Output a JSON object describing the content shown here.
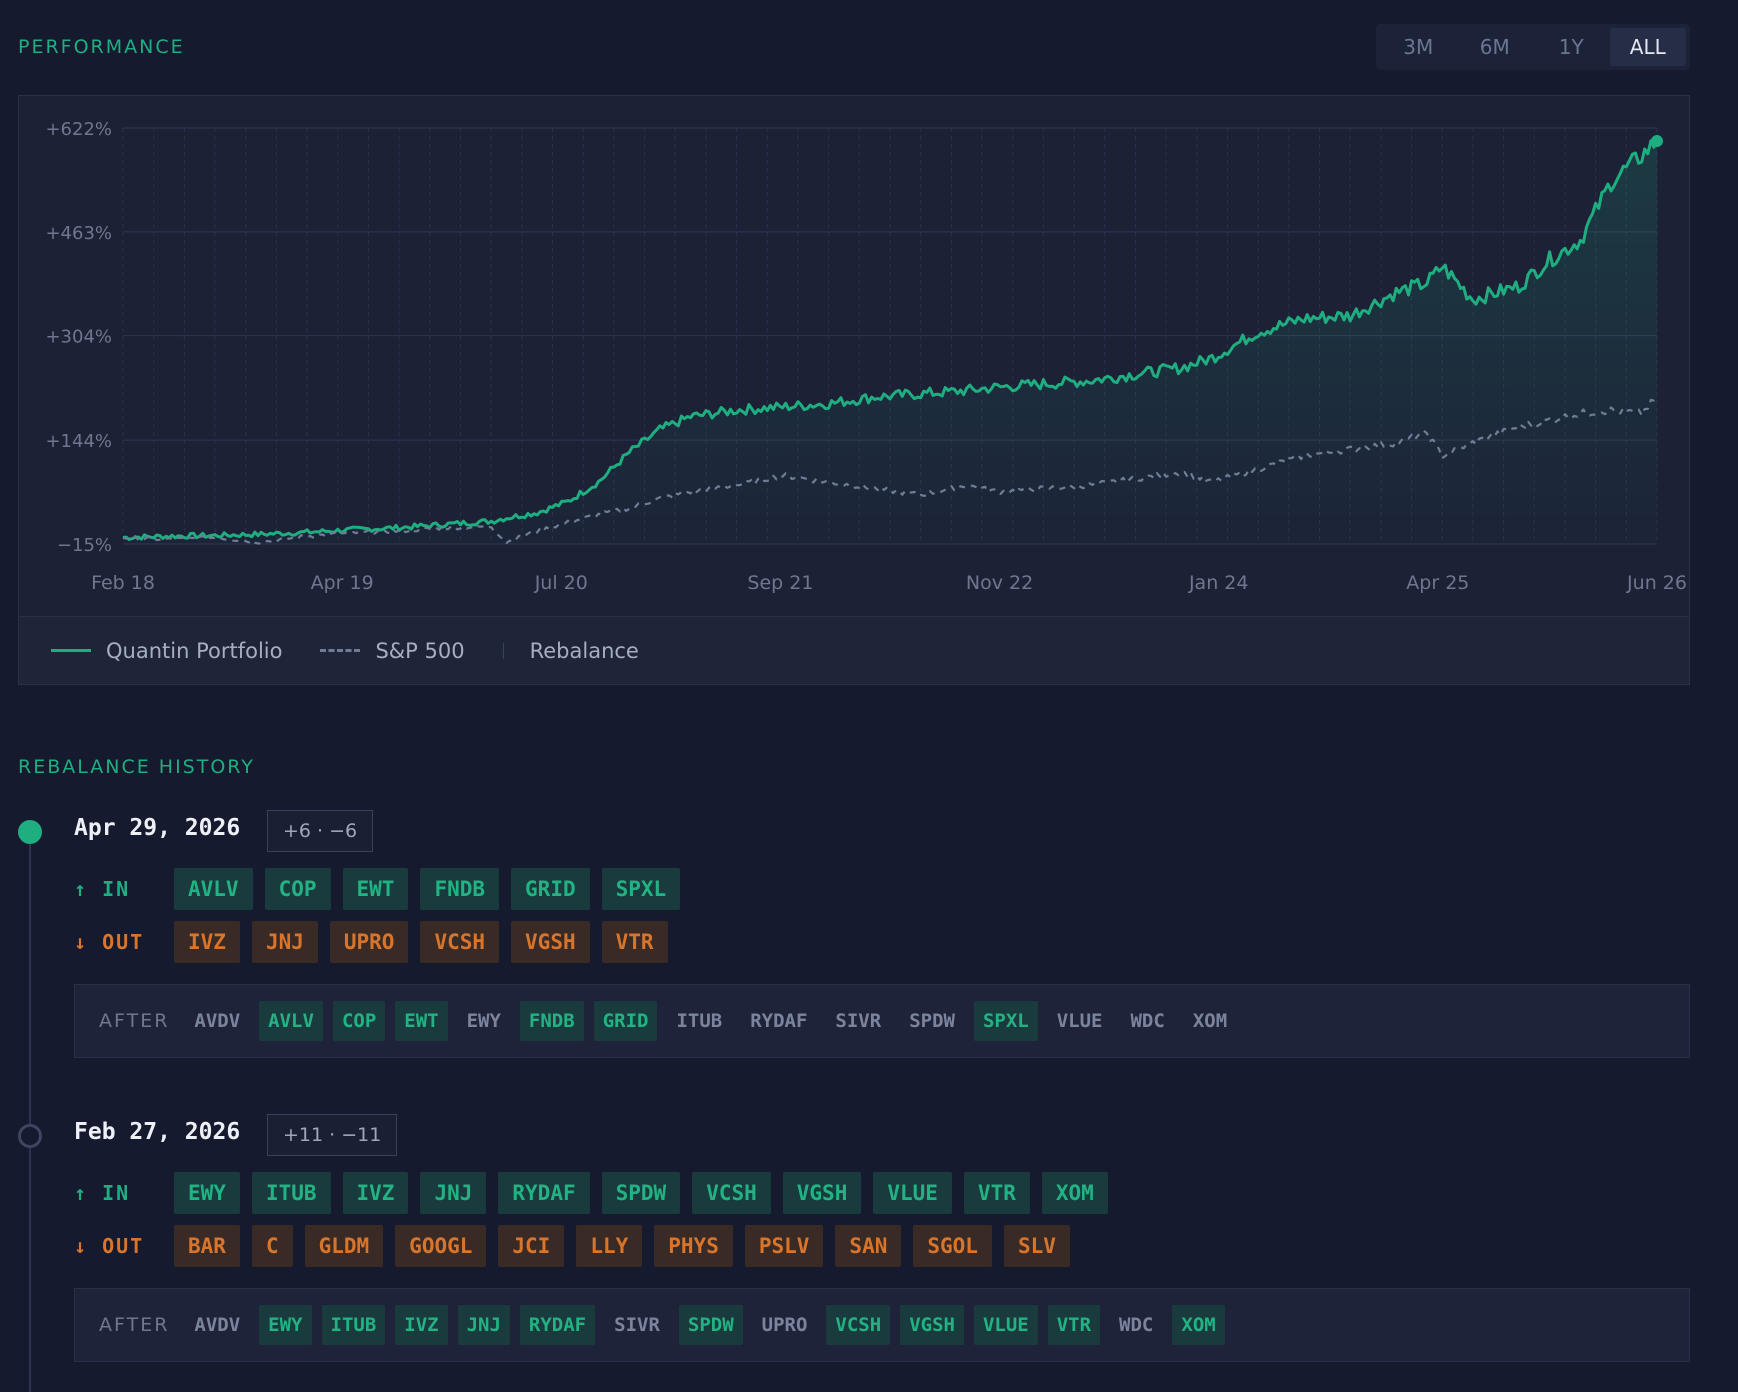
{
  "performance": {
    "title": "PERFORMANCE",
    "ranges": [
      "3M",
      "6M",
      "1Y",
      "ALL"
    ],
    "active_range": "ALL"
  },
  "chart_data": {
    "type": "line",
    "y_ticks": [
      "+622%",
      "+463%",
      "+304%",
      "+144%",
      "−15%"
    ],
    "y_tick_values": [
      622,
      463,
      304,
      144,
      -15
    ],
    "ylim": [
      -15,
      622
    ],
    "x_ticks": [
      "Feb 18",
      "Apr 19",
      "Jul 20",
      "Sep 21",
      "Nov 22",
      "Jan 24",
      "Apr 25",
      "Jun 26"
    ],
    "grid": true,
    "legend_position": "bottom",
    "series": [
      {
        "name": "Quantin Portfolio",
        "style": "solid",
        "color": "#1fae80",
        "x": [
          "Feb 18",
          "May 18",
          "Aug 18",
          "Nov 18",
          "Feb 19",
          "May 19",
          "Aug 19",
          "Nov 19",
          "Feb 20",
          "Mar 20",
          "May 20",
          "Jul 20",
          "Sep 20",
          "Nov 20",
          "Jan 21",
          "Mar 21",
          "Jun 21",
          "Sep 21",
          "Dec 21",
          "Mar 22",
          "Jun 22",
          "Sep 22",
          "Nov 22",
          "Feb 23",
          "May 23",
          "Aug 23",
          "Nov 23",
          "Jan 24",
          "Apr 24",
          "Jul 24",
          "Oct 24",
          "Jan 25",
          "Mar 25",
          "Apr 25",
          "Jun 25",
          "Sep 25",
          "Nov 25",
          "Jan 26",
          "Mar 26",
          "May 26",
          "Jun 26"
        ],
        "values": [
          -5,
          -3,
          -2,
          0,
          3,
          7,
          10,
          15,
          20,
          25,
          33,
          50,
          80,
          125,
          160,
          180,
          190,
          195,
          200,
          210,
          215,
          220,
          225,
          230,
          235,
          245,
          255,
          270,
          310,
          330,
          335,
          370,
          385,
          410,
          360,
          380,
          420,
          450,
          540,
          580,
          602
        ],
        "end_marker": true
      },
      {
        "name": "S&P 500",
        "style": "dashed",
        "color": "#6f7d96",
        "x": [
          "Feb 18",
          "May 18",
          "Aug 18",
          "Nov 18",
          "Feb 19",
          "May 19",
          "Aug 19",
          "Nov 19",
          "Feb 20",
          "Mar 20",
          "May 20",
          "Jul 20",
          "Sep 20",
          "Nov 20",
          "Jan 21",
          "Mar 21",
          "Jun 21",
          "Sep 21",
          "Dec 21",
          "Mar 22",
          "Jun 22",
          "Sep 22",
          "Nov 22",
          "Feb 23",
          "May 23",
          "Aug 23",
          "Nov 23",
          "Jan 24",
          "Apr 24",
          "Jul 24",
          "Oct 24",
          "Jan 25",
          "Mar 25",
          "Apr 25",
          "Jun 25",
          "Sep 25",
          "Nov 25",
          "Jan 26",
          "Mar 26",
          "May 26",
          "Jun 26"
        ],
        "values": [
          -5,
          -8,
          -5,
          -12,
          -3,
          2,
          5,
          10,
          12,
          -12,
          5,
          18,
          30,
          40,
          55,
          65,
          75,
          90,
          80,
          70,
          60,
          75,
          65,
          70,
          75,
          85,
          95,
          80,
          100,
          120,
          130,
          140,
          155,
          120,
          140,
          165,
          175,
          185,
          190,
          185,
          210
        ]
      }
    ],
    "legend": [
      "Quantin Portfolio",
      "S&P 500",
      "Rebalance"
    ]
  },
  "rebalance": {
    "title": "REBALANCE HISTORY",
    "in_label": "↑ IN",
    "out_label": "↓ OUT",
    "after_label": "AFTER",
    "entries": [
      {
        "date": "Apr 29, 2026",
        "badge": "+6 · −6",
        "in": [
          "AVLV",
          "COP",
          "EWT",
          "FNDB",
          "GRID",
          "SPXL"
        ],
        "out": [
          "IVZ",
          "JNJ",
          "UPRO",
          "VCSH",
          "VGSH",
          "VTR"
        ],
        "after": [
          "AVDV",
          "AVLV",
          "COP",
          "EWT",
          "EWY",
          "FNDB",
          "GRID",
          "ITUB",
          "RYDAF",
          "SIVR",
          "SPDW",
          "SPXL",
          "VLUE",
          "WDC",
          "XOM"
        ],
        "after_new": [
          "AVLV",
          "COP",
          "EWT",
          "FNDB",
          "GRID",
          "SPXL"
        ]
      },
      {
        "date": "Feb 27, 2026",
        "badge": "+11 · −11",
        "in": [
          "EWY",
          "ITUB",
          "IVZ",
          "JNJ",
          "RYDAF",
          "SPDW",
          "VCSH",
          "VGSH",
          "VLUE",
          "VTR",
          "XOM"
        ],
        "out": [
          "BAR",
          "C",
          "GLDM",
          "GOOGL",
          "JCI",
          "LLY",
          "PHYS",
          "PSLV",
          "SAN",
          "SGOL",
          "SLV"
        ],
        "after": [
          "AVDV",
          "EWY",
          "ITUB",
          "IVZ",
          "JNJ",
          "RYDAF",
          "SIVR",
          "SPDW",
          "UPRO",
          "VCSH",
          "VGSH",
          "VLUE",
          "VTR",
          "WDC",
          "XOM"
        ],
        "after_new": [
          "EWY",
          "ITUB",
          "IVZ",
          "JNJ",
          "RYDAF",
          "SPDW",
          "VCSH",
          "VGSH",
          "VLUE",
          "VTR",
          "XOM"
        ]
      }
    ]
  }
}
